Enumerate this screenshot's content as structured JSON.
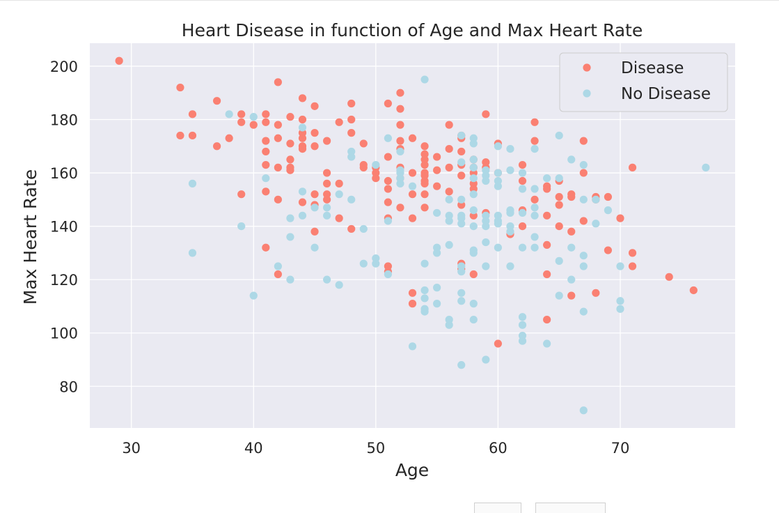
{
  "chart_data": {
    "type": "scatter",
    "title": "Heart Disease in function of Age and Max Heart Rate",
    "xlabel": "Age",
    "ylabel": "Max Heart Rate",
    "xlim": [
      26.6,
      79.4
    ],
    "ylim": [
      64.4,
      208.6
    ],
    "xticks": [
      30,
      40,
      50,
      60,
      70
    ],
    "yticks": [
      80,
      100,
      120,
      140,
      160,
      180,
      200
    ],
    "grid": true,
    "legend_position": "top-right",
    "colors": {
      "background": "#eaeaf2",
      "grid": "#ffffff",
      "text": "#262626"
    },
    "series": [
      {
        "name": "Disease",
        "color": "#fa8072",
        "points": [
          [
            29,
            202
          ],
          [
            34,
            192
          ],
          [
            34,
            174
          ],
          [
            35,
            182
          ],
          [
            35,
            174
          ],
          [
            37,
            187
          ],
          [
            37,
            170
          ],
          [
            38,
            173
          ],
          [
            39,
            182
          ],
          [
            39,
            179
          ],
          [
            39,
            152
          ],
          [
            40,
            178
          ],
          [
            41,
            182
          ],
          [
            41,
            179
          ],
          [
            41,
            172
          ],
          [
            41,
            168
          ],
          [
            41,
            163
          ],
          [
            41,
            153
          ],
          [
            41,
            132
          ],
          [
            42,
            194
          ],
          [
            42,
            178
          ],
          [
            42,
            173
          ],
          [
            42,
            162
          ],
          [
            42,
            150
          ],
          [
            42,
            122
          ],
          [
            43,
            181
          ],
          [
            43,
            171
          ],
          [
            43,
            165
          ],
          [
            43,
            162
          ],
          [
            43,
            161
          ],
          [
            44,
            188
          ],
          [
            44,
            180
          ],
          [
            44,
            175
          ],
          [
            44,
            173
          ],
          [
            44,
            170
          ],
          [
            44,
            169
          ],
          [
            44,
            149
          ],
          [
            45,
            185
          ],
          [
            45,
            175
          ],
          [
            45,
            170
          ],
          [
            45,
            152
          ],
          [
            45,
            148
          ],
          [
            45,
            138
          ],
          [
            46,
            172
          ],
          [
            46,
            160
          ],
          [
            46,
            156
          ],
          [
            46,
            152
          ],
          [
            46,
            150
          ],
          [
            47,
            179
          ],
          [
            47,
            156
          ],
          [
            47,
            143
          ],
          [
            48,
            186
          ],
          [
            48,
            180
          ],
          [
            48,
            175
          ],
          [
            48,
            139
          ],
          [
            49,
            171
          ],
          [
            49,
            163
          ],
          [
            49,
            162
          ],
          [
            50,
            162
          ],
          [
            50,
            160
          ],
          [
            50,
            158
          ],
          [
            51,
            186
          ],
          [
            51,
            166
          ],
          [
            51,
            157
          ],
          [
            51,
            154
          ],
          [
            51,
            149
          ],
          [
            51,
            143
          ],
          [
            51,
            125
          ],
          [
            51,
            123
          ],
          [
            52,
            190
          ],
          [
            52,
            184
          ],
          [
            52,
            178
          ],
          [
            52,
            172
          ],
          [
            52,
            169
          ],
          [
            52,
            162
          ],
          [
            52,
            158
          ],
          [
            52,
            147
          ],
          [
            53,
            173
          ],
          [
            53,
            160
          ],
          [
            53,
            152
          ],
          [
            53,
            143
          ],
          [
            53,
            115
          ],
          [
            53,
            111
          ],
          [
            54,
            170
          ],
          [
            54,
            167
          ],
          [
            54,
            165
          ],
          [
            54,
            163
          ],
          [
            54,
            160
          ],
          [
            54,
            159
          ],
          [
            54,
            157
          ],
          [
            54,
            156
          ],
          [
            54,
            152
          ],
          [
            54,
            147
          ],
          [
            55,
            166
          ],
          [
            55,
            161
          ],
          [
            55,
            155
          ],
          [
            56,
            178
          ],
          [
            56,
            169
          ],
          [
            56,
            162
          ],
          [
            56,
            153
          ],
          [
            57,
            174
          ],
          [
            57,
            173
          ],
          [
            57,
            168
          ],
          [
            57,
            163
          ],
          [
            57,
            159
          ],
          [
            57,
            148
          ],
          [
            57,
            126
          ],
          [
            57,
            124
          ],
          [
            58,
            165
          ],
          [
            58,
            162
          ],
          [
            58,
            160
          ],
          [
            58,
            156
          ],
          [
            58,
            154
          ],
          [
            58,
            144
          ],
          [
            58,
            122
          ],
          [
            59,
            182
          ],
          [
            59,
            164
          ],
          [
            59,
            162
          ],
          [
            59,
            145
          ],
          [
            60,
            171
          ],
          [
            60,
            160
          ],
          [
            60,
            96
          ],
          [
            61,
            137
          ],
          [
            62,
            163
          ],
          [
            62,
            157
          ],
          [
            62,
            146
          ],
          [
            62,
            140
          ],
          [
            63,
            179
          ],
          [
            63,
            172
          ],
          [
            63,
            150
          ],
          [
            64,
            155
          ],
          [
            64,
            154
          ],
          [
            64,
            144
          ],
          [
            64,
            133
          ],
          [
            64,
            122
          ],
          [
            64,
            105
          ],
          [
            65,
            157
          ],
          [
            65,
            151
          ],
          [
            65,
            148
          ],
          [
            65,
            140
          ],
          [
            66,
            152
          ],
          [
            66,
            151
          ],
          [
            66,
            138
          ],
          [
            66,
            114
          ],
          [
            67,
            172
          ],
          [
            67,
            160
          ],
          [
            67,
            142
          ],
          [
            68,
            151
          ],
          [
            68,
            150
          ],
          [
            68,
            115
          ],
          [
            69,
            151
          ],
          [
            69,
            131
          ],
          [
            70,
            143
          ],
          [
            71,
            162
          ],
          [
            71,
            130
          ],
          [
            71,
            125
          ],
          [
            74,
            121
          ],
          [
            76,
            116
          ]
        ]
      },
      {
        "name": "No Disease",
        "color": "#add8e6",
        "points": [
          [
            35,
            156
          ],
          [
            35,
            130
          ],
          [
            38,
            182
          ],
          [
            39,
            140
          ],
          [
            40,
            181
          ],
          [
            40,
            114
          ],
          [
            41,
            158
          ],
          [
            42,
            125
          ],
          [
            43,
            143
          ],
          [
            43,
            136
          ],
          [
            43,
            120
          ],
          [
            44,
            177
          ],
          [
            44,
            153
          ],
          [
            44,
            144
          ],
          [
            45,
            147
          ],
          [
            45,
            132
          ],
          [
            46,
            147
          ],
          [
            46,
            144
          ],
          [
            46,
            120
          ],
          [
            47,
            152
          ],
          [
            47,
            118
          ],
          [
            48,
            168
          ],
          [
            48,
            166
          ],
          [
            48,
            150
          ],
          [
            49,
            139
          ],
          [
            49,
            126
          ],
          [
            50,
            163
          ],
          [
            50,
            128
          ],
          [
            50,
            126
          ],
          [
            51,
            173
          ],
          [
            51,
            142
          ],
          [
            51,
            122
          ],
          [
            52,
            168
          ],
          [
            52,
            161
          ],
          [
            52,
            160
          ],
          [
            52,
            158
          ],
          [
            52,
            156
          ],
          [
            53,
            155
          ],
          [
            53,
            95
          ],
          [
            54,
            195
          ],
          [
            54,
            126
          ],
          [
            54,
            116
          ],
          [
            54,
            113
          ],
          [
            54,
            109
          ],
          [
            54,
            108
          ],
          [
            55,
            145
          ],
          [
            55,
            132
          ],
          [
            55,
            130
          ],
          [
            55,
            117
          ],
          [
            55,
            111
          ],
          [
            56,
            150
          ],
          [
            56,
            144
          ],
          [
            56,
            142
          ],
          [
            56,
            133
          ],
          [
            56,
            105
          ],
          [
            56,
            103
          ],
          [
            57,
            174
          ],
          [
            57,
            164
          ],
          [
            57,
            150
          ],
          [
            57,
            144
          ],
          [
            57,
            143
          ],
          [
            57,
            141
          ],
          [
            57,
            125
          ],
          [
            57,
            123
          ],
          [
            57,
            115
          ],
          [
            57,
            112
          ],
          [
            57,
            88
          ],
          [
            58,
            173
          ],
          [
            58,
            171
          ],
          [
            58,
            165
          ],
          [
            58,
            162
          ],
          [
            58,
            158
          ],
          [
            58,
            152
          ],
          [
            58,
            146
          ],
          [
            58,
            140
          ],
          [
            58,
            131
          ],
          [
            58,
            130
          ],
          [
            58,
            111
          ],
          [
            58,
            105
          ],
          [
            59,
            161
          ],
          [
            59,
            159
          ],
          [
            59,
            157
          ],
          [
            59,
            144
          ],
          [
            59,
            142
          ],
          [
            59,
            140
          ],
          [
            59,
            134
          ],
          [
            59,
            125
          ],
          [
            59,
            90
          ],
          [
            60,
            170
          ],
          [
            60,
            160
          ],
          [
            60,
            157
          ],
          [
            60,
            155
          ],
          [
            60,
            144
          ],
          [
            60,
            142
          ],
          [
            60,
            141
          ],
          [
            60,
            132
          ],
          [
            61,
            169
          ],
          [
            61,
            161
          ],
          [
            61,
            146
          ],
          [
            61,
            145
          ],
          [
            61,
            140
          ],
          [
            61,
            138
          ],
          [
            61,
            125
          ],
          [
            62,
            160
          ],
          [
            62,
            154
          ],
          [
            62,
            145
          ],
          [
            62,
            132
          ],
          [
            62,
            106
          ],
          [
            62,
            103
          ],
          [
            62,
            99
          ],
          [
            62,
            97
          ],
          [
            63,
            169
          ],
          [
            63,
            154
          ],
          [
            63,
            147
          ],
          [
            63,
            144
          ],
          [
            63,
            136
          ],
          [
            63,
            132
          ],
          [
            64,
            158
          ],
          [
            64,
            96
          ],
          [
            65,
            174
          ],
          [
            65,
            158
          ],
          [
            65,
            127
          ],
          [
            65,
            114
          ],
          [
            66,
            165
          ],
          [
            66,
            132
          ],
          [
            66,
            120
          ],
          [
            67,
            163
          ],
          [
            67,
            150
          ],
          [
            67,
            129
          ],
          [
            67,
            125
          ],
          [
            67,
            108
          ],
          [
            67,
            71
          ],
          [
            68,
            150
          ],
          [
            68,
            141
          ],
          [
            69,
            146
          ],
          [
            70,
            125
          ],
          [
            70,
            112
          ],
          [
            70,
            109
          ],
          [
            77,
            162
          ]
        ]
      }
    ]
  }
}
